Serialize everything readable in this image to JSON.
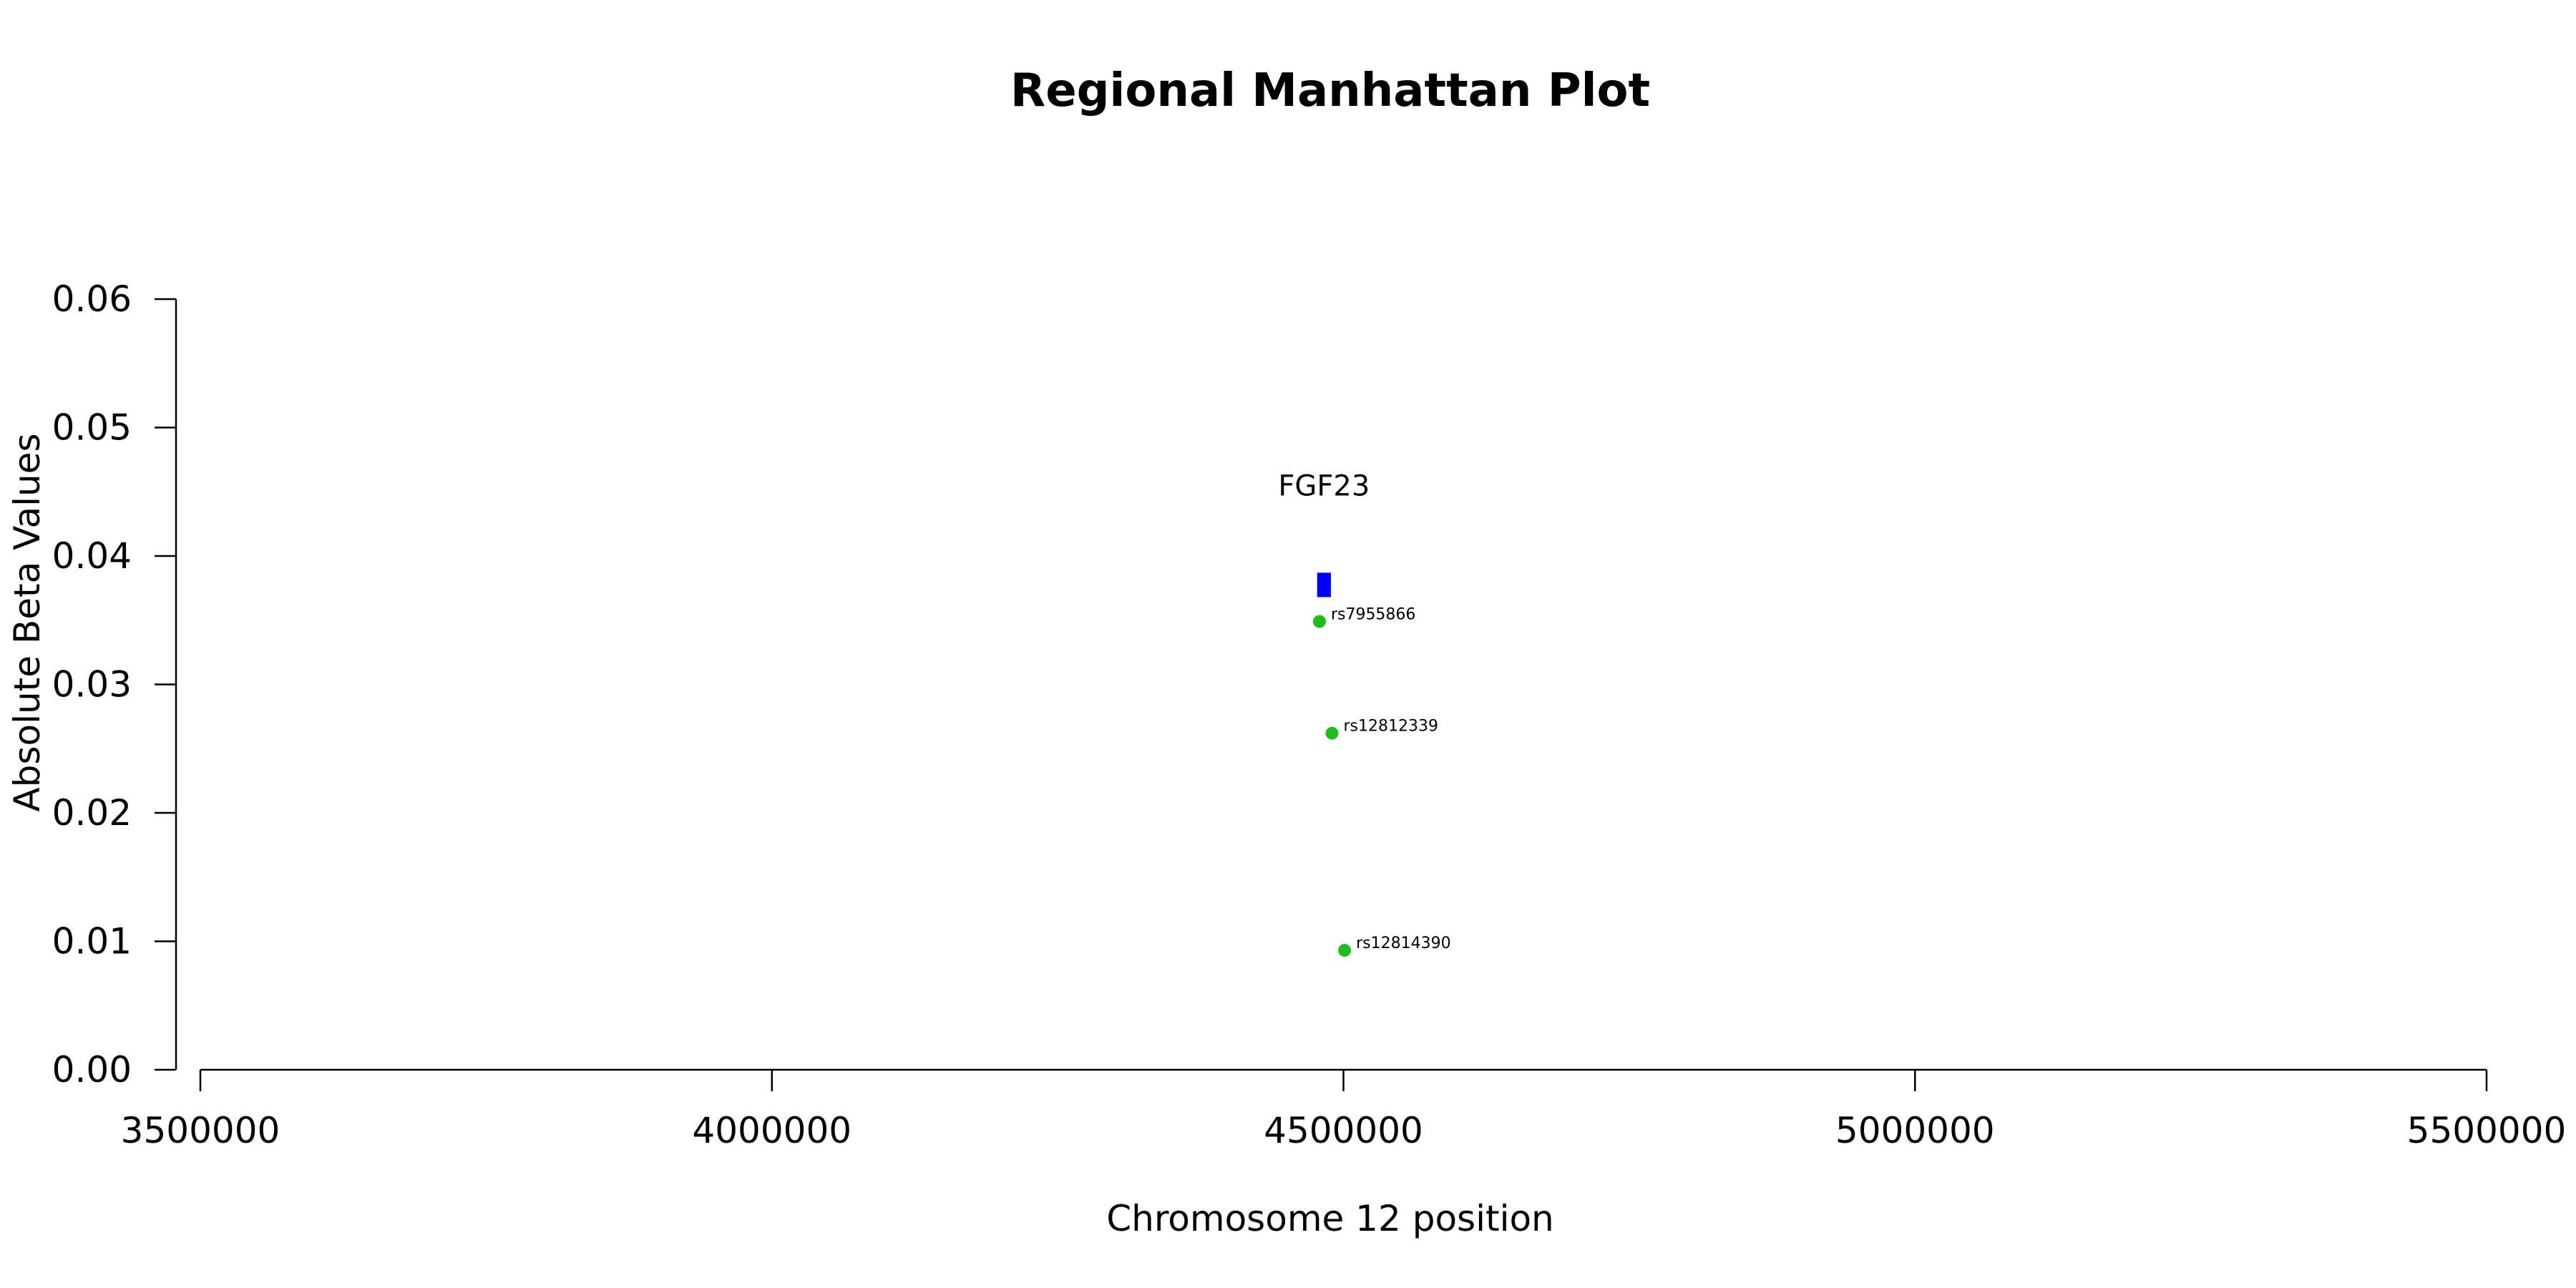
{
  "chart_data": {
    "type": "scatter",
    "title": "Regional Manhattan Plot",
    "xlabel": "Chromosome 12 position",
    "ylabel": "Absolute Beta Values",
    "xlim": [
      3500000,
      5500000
    ],
    "ylim": [
      0,
      0.06
    ],
    "x_ticks": [
      3500000,
      4000000,
      4500000,
      5000000,
      5500000
    ],
    "x_tick_labels": [
      "3500000",
      "4000000",
      "4500000",
      "5000000",
      "5500000"
    ],
    "y_ticks": [
      0,
      0.01,
      0.02,
      0.03,
      0.04,
      0.05,
      0.06
    ],
    "y_tick_labels": [
      "0.00",
      "0.01",
      "0.02",
      "0.03",
      "0.04",
      "0.05",
      "0.06"
    ],
    "grid": false,
    "points": [
      {
        "snp": "rs7955866",
        "x": 4479000,
        "y": 0.0349,
        "color": "#1ebd1e"
      },
      {
        "snp": "rs12812339",
        "x": 4490000,
        "y": 0.0262,
        "color": "#1ebd1e"
      },
      {
        "snp": "rs12814390",
        "x": 4501000,
        "y": 0.0093,
        "color": "#1ebd1e"
      }
    ],
    "gene": {
      "name": "FGF23",
      "x_start": 4477000,
      "x_end": 4489000,
      "y_low": 0.0368,
      "y_high": 0.0387,
      "label_y": 0.0455,
      "color": "#0000ff"
    }
  }
}
